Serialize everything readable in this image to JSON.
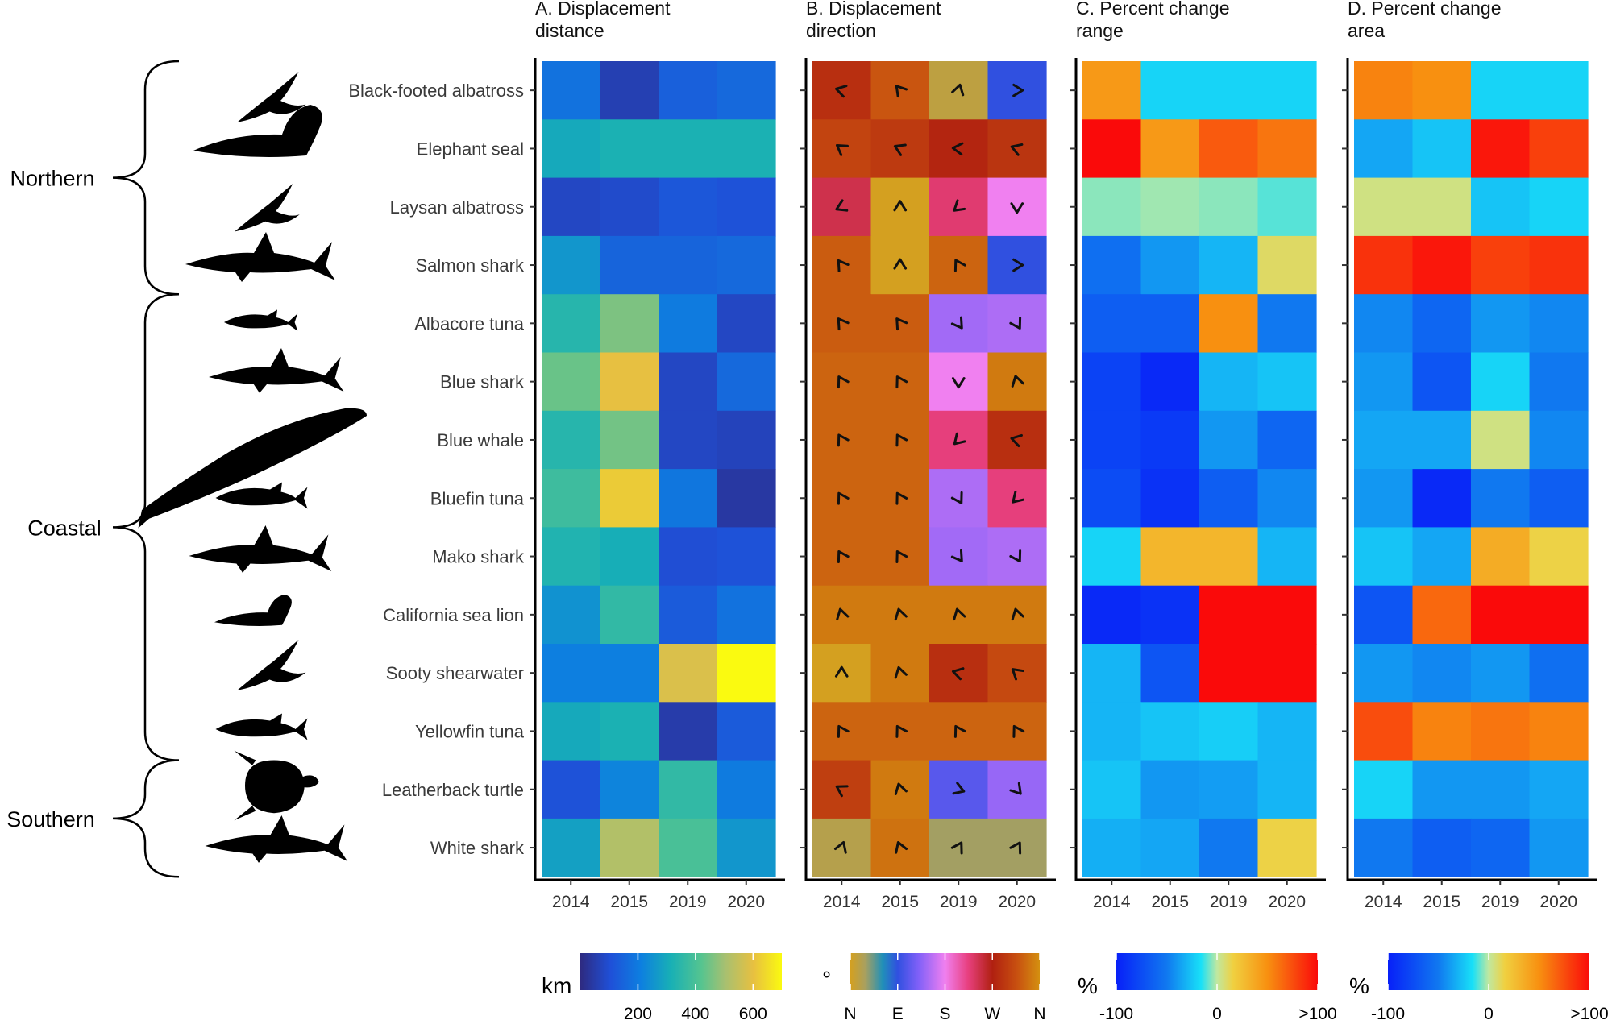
{
  "chart_data": {
    "type": "heatmap",
    "years": [
      "2014",
      "2015",
      "2019",
      "2020"
    ],
    "groups": [
      {
        "name": "Northern",
        "first": 0,
        "last": 3
      },
      {
        "name": "Coastal",
        "first": 4,
        "last": 11
      },
      {
        "name": "Southern",
        "first": 12,
        "last": 13
      }
    ],
    "species": [
      "Black-footed albatross",
      "Elephant seal",
      "Laysan albatross",
      "Salmon shark",
      "Albacore tuna",
      "Blue shark",
      "Blue whale",
      "Bluefin tuna",
      "Mako shark",
      "California sea lion",
      "Sooty shearwater",
      "Yellowfin tuna",
      "Leatherback turtle",
      "White shark"
    ],
    "panels": [
      {
        "title_line1": "A. Displacement",
        "title_line2": "distance",
        "unit": "km",
        "range": [
          0,
          700
        ],
        "colorbar_ticks": [
          "200",
          "400",
          "600"
        ],
        "colorbar_tick_values": [
          200,
          400,
          600
        ],
        "values": [
          [
            180,
            60,
            140,
            160
          ],
          [
            300,
            320,
            320,
            320
          ],
          [
            80,
            90,
            120,
            110
          ],
          [
            260,
            150,
            150,
            160
          ],
          [
            340,
            460,
            200,
            80
          ],
          [
            440,
            600,
            80,
            160
          ],
          [
            340,
            450,
            80,
            70
          ],
          [
            380,
            620,
            190,
            40
          ],
          [
            330,
            310,
            100,
            110
          ],
          [
            250,
            360,
            130,
            180
          ],
          [
            210,
            210,
            580,
            700
          ],
          [
            300,
            320,
            50,
            130
          ],
          [
            110,
            220,
            360,
            200
          ],
          [
            280,
            520,
            400,
            260
          ]
        ]
      },
      {
        "title_line1": "B. Displacement",
        "title_line2": "direction",
        "unit": "°",
        "range": [
          0,
          360
        ],
        "colorbar_ticks": [
          "N",
          "E",
          "S",
          "W",
          "N"
        ],
        "colorbar_tick_values": [
          0,
          90,
          180,
          270,
          360
        ],
        "values": [
          [
            285,
            320,
            15,
            90
          ],
          [
            305,
            295,
            275,
            290
          ],
          [
            245,
            0,
            230,
            180
          ],
          [
            325,
            0,
            330,
            90
          ],
          [
            325,
            325,
            145,
            150
          ],
          [
            330,
            330,
            180,
            345
          ],
          [
            330,
            330,
            225,
            285
          ],
          [
            330,
            330,
            150,
            225
          ],
          [
            330,
            330,
            145,
            150
          ],
          [
            345,
            345,
            345,
            345
          ],
          [
            0,
            345,
            285,
            310
          ],
          [
            330,
            330,
            330,
            330
          ],
          [
            300,
            345,
            110,
            140
          ],
          [
            20,
            340,
            30,
            30
          ]
        ]
      },
      {
        "title_line1": "C. Percent change",
        "title_line2": "range",
        "unit": "%",
        "range": [
          -100,
          100
        ],
        "colorbar_ticks": [
          "-100",
          "0",
          ">100"
        ],
        "colorbar_tick_values": [
          -100,
          0,
          100
        ],
        "values": [
          [
            45,
            -20,
            -20,
            -20
          ],
          [
            100,
            45,
            70,
            60
          ],
          [
            -5,
            -3,
            -5,
            -10
          ],
          [
            -55,
            -40,
            -30,
            10
          ],
          [
            -65,
            -65,
            50,
            -50
          ],
          [
            -80,
            -95,
            -30,
            -25
          ],
          [
            -80,
            -85,
            -40,
            -60
          ],
          [
            -75,
            -90,
            -65,
            -45
          ],
          [
            -20,
            30,
            30,
            -30
          ],
          [
            -95,
            -90,
            100,
            100
          ],
          [
            -30,
            -70,
            100,
            100
          ],
          [
            -30,
            -25,
            -22,
            -30
          ],
          [
            -25,
            -40,
            -38,
            -30
          ],
          [
            -32,
            -35,
            -50,
            15
          ]
        ]
      },
      {
        "title_line1": "D. Percent change",
        "title_line2": "area",
        "unit": "%",
        "range": [
          -100,
          100
        ],
        "colorbar_ticks": [
          "-100",
          "0",
          ">100"
        ],
        "colorbar_tick_values": [
          -100,
          0,
          100
        ],
        "values": [
          [
            55,
            50,
            -20,
            -20
          ],
          [
            -35,
            -25,
            95,
            80
          ],
          [
            5,
            5,
            -25,
            -20
          ],
          [
            85,
            95,
            80,
            85
          ],
          [
            -45,
            -60,
            -40,
            -45
          ],
          [
            -40,
            -70,
            -20,
            -50
          ],
          [
            -35,
            -35,
            5,
            -45
          ],
          [
            -40,
            -95,
            -50,
            -65
          ],
          [
            -25,
            -35,
            35,
            15
          ],
          [
            -70,
            65,
            100,
            100
          ],
          [
            -40,
            -45,
            -40,
            -55
          ],
          [
            75,
            55,
            60,
            55
          ],
          [
            -20,
            -40,
            -40,
            -35
          ],
          [
            -50,
            -65,
            -60,
            -40
          ]
        ]
      }
    ]
  }
}
